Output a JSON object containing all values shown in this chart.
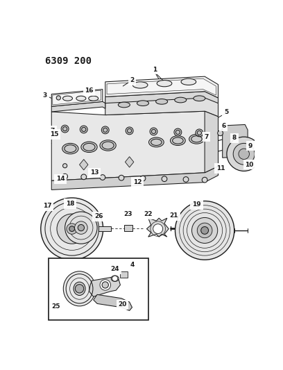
{
  "title": "6309 200",
  "bg": "#ffffff",
  "lc": "#1a1a1a",
  "lw": 0.75,
  "title_fontsize": 10,
  "label_fontsize": 6.5,
  "figsize": [
    4.08,
    5.33
  ],
  "dpi": 100
}
